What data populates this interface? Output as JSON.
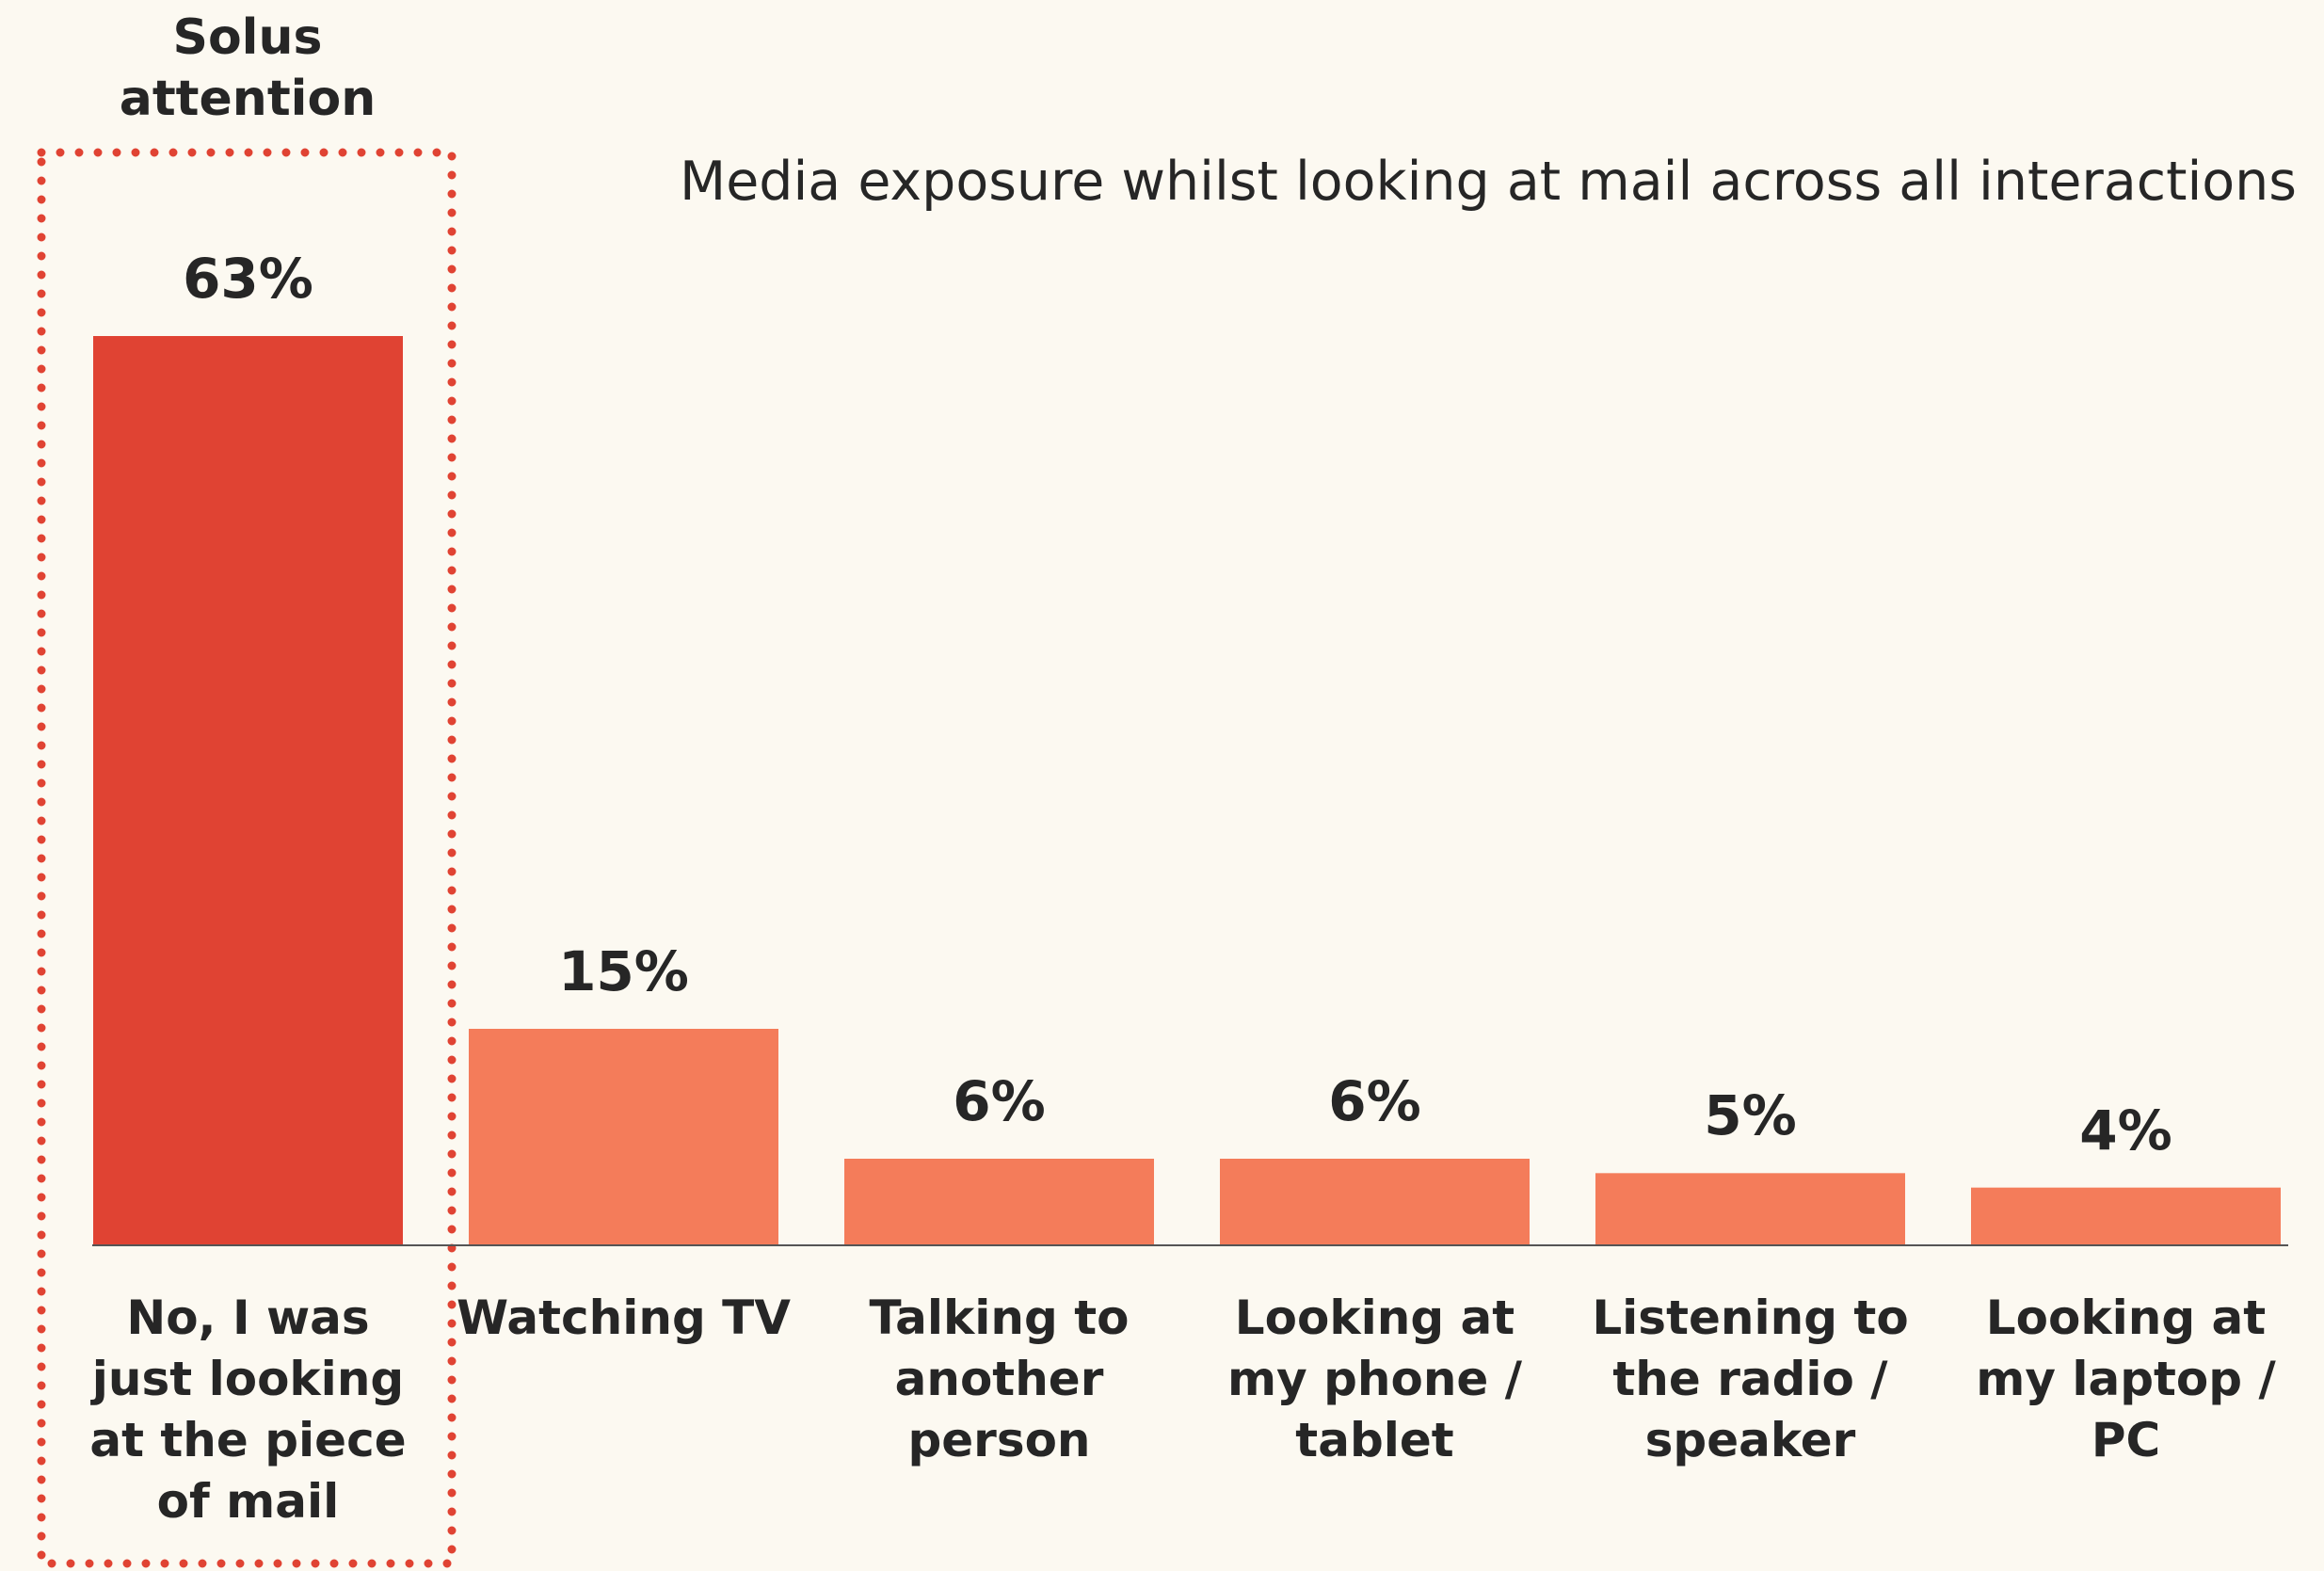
{
  "chart_data": {
    "type": "bar",
    "title": "Media exposure whilst looking at mail across all interactions",
    "annotation": "Solus attention",
    "categories": [
      "No, I was just looking at the piece of mail",
      "Watching TV",
      "Talking to another person",
      "Looking at my phone / tablet",
      "Listening to the radio / speaker",
      "Looking at my laptop / PC"
    ],
    "values": [
      63,
      15,
      6,
      6,
      5,
      4
    ],
    "value_labels": [
      "63%",
      "15%",
      "6%",
      "6%",
      "5%",
      "4%"
    ],
    "colors": [
      "#e04333",
      "#f47c5a",
      "#f47c5a",
      "#f47c5a",
      "#f47c5a",
      "#f47c5a"
    ],
    "highlight_color": "#e04333"
  }
}
